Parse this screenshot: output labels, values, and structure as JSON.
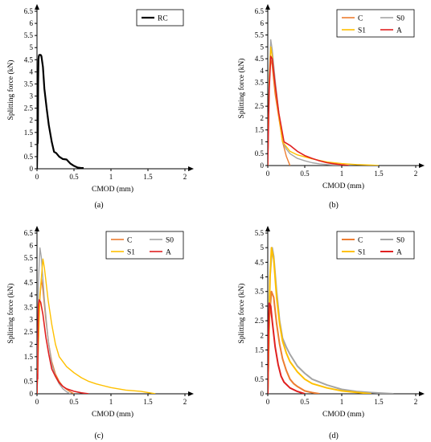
{
  "colors": {
    "C": "#ed7d31",
    "S0": "#a5a5a5",
    "S1": "#ffc000",
    "A": "#e02020",
    "RC": "#000000",
    "axis": "#000000"
  },
  "chart_data": [
    {
      "panel": "(a)",
      "type": "line",
      "xlabel": "CMOD (mm)",
      "ylabel": "Splitting force (kN)",
      "xlim": [
        0,
        2
      ],
      "ylim": [
        0,
        6.5
      ],
      "x_ticks": [
        "0",
        "0.5",
        "1",
        "1.5",
        "2"
      ],
      "y_ticks": [
        "0",
        "0.5",
        "1",
        "1.5",
        "2",
        "2.5",
        "3",
        "3.5",
        "4",
        "4.5",
        "5",
        "5.5",
        "6",
        "6.5"
      ],
      "legend_position": "top-right",
      "legend_columns": 1,
      "series": [
        {
          "name": "RC",
          "color_key": "RC",
          "width": 2.2,
          "x": [
            0,
            0.005,
            0.01,
            0.012,
            0.015,
            0.02,
            0.025,
            0.03,
            0.05,
            0.06,
            0.08,
            0.1,
            0.13,
            0.16,
            0.2,
            0.23,
            0.26,
            0.3,
            0.35,
            0.4,
            0.45,
            0.5,
            0.55,
            0.6,
            0.63
          ],
          "y": [
            0,
            1.1,
            1.05,
            1.2,
            3.5,
            4.5,
            4.65,
            4.7,
            4.7,
            4.65,
            4.2,
            3.3,
            2.5,
            1.8,
            1.1,
            0.7,
            0.65,
            0.5,
            0.4,
            0.38,
            0.22,
            0.12,
            0.05,
            0.03,
            0.03
          ]
        }
      ]
    },
    {
      "panel": "(b)",
      "type": "line",
      "xlabel": "CMOD (mm)",
      "ylabel": "Splitting force (kN)",
      "xlim": [
        0,
        2
      ],
      "ylim": [
        0,
        6.5
      ],
      "x_ticks": [
        "0",
        "0.5",
        "1",
        "1.5",
        "2"
      ],
      "y_ticks": [
        "0",
        "0.5",
        "1",
        "1.5",
        "2",
        "2.5",
        "3",
        "3.5",
        "4",
        "4.5",
        "5",
        "5.5",
        "6",
        "6.5"
      ],
      "legend_position": "top-right",
      "legend_columns": 2,
      "series": [
        {
          "name": "C",
          "color_key": "C",
          "width": 1.4,
          "x": [
            0,
            0.02,
            0.04,
            0.06,
            0.1,
            0.15,
            0.2,
            0.25,
            0.3
          ],
          "y": [
            0,
            3.5,
            4.5,
            4.2,
            3.0,
            2.0,
            1.0,
            0.4,
            0
          ]
        },
        {
          "name": "S0",
          "color_key": "S0",
          "width": 1.4,
          "x": [
            0,
            0.02,
            0.04,
            0.06,
            0.1,
            0.15,
            0.2,
            0.25,
            0.3,
            0.4,
            0.5,
            0.6,
            0.7,
            0.8,
            0.9,
            1.0
          ],
          "y": [
            0,
            3.8,
            5.3,
            4.9,
            3.6,
            2.2,
            1.0,
            0.7,
            0.5,
            0.3,
            0.2,
            0.12,
            0.07,
            0.04,
            0.02,
            0
          ]
        },
        {
          "name": "S1",
          "color_key": "S1",
          "width": 1.4,
          "x": [
            0,
            0.02,
            0.04,
            0.06,
            0.1,
            0.15,
            0.2,
            0.25,
            0.3,
            0.4,
            0.6,
            0.8,
            1.0,
            1.2,
            1.4,
            1.5
          ],
          "y": [
            0,
            3.5,
            5.0,
            4.6,
            3.3,
            2.1,
            1.0,
            0.8,
            0.6,
            0.45,
            0.28,
            0.15,
            0.08,
            0.04,
            0.02,
            0
          ]
        },
        {
          "name": "A",
          "color_key": "A",
          "width": 1.6,
          "x": [
            0,
            0.02,
            0.04,
            0.06,
            0.1,
            0.15,
            0.22,
            0.3,
            0.4,
            0.5,
            0.6,
            0.7,
            0.8,
            0.9,
            1.0,
            1.1
          ],
          "y": [
            0,
            3.2,
            4.6,
            4.5,
            3.4,
            2.2,
            1.0,
            0.85,
            0.6,
            0.42,
            0.3,
            0.2,
            0.12,
            0.07,
            0.03,
            0
          ]
        }
      ]
    },
    {
      "panel": "(c)",
      "type": "line",
      "xlabel": "CMOD (mm)",
      "ylabel": "Splitting force (kN)",
      "xlim": [
        0,
        2
      ],
      "ylim": [
        0,
        6.5
      ],
      "x_ticks": [
        "0",
        "0.5",
        "1",
        "1.5",
        "2"
      ],
      "y_ticks": [
        "0",
        "0.5",
        "1",
        "1.5",
        "2",
        "2.5",
        "3",
        "3.5",
        "4",
        "4.5",
        "5",
        "5.5",
        "6",
        "6.5"
      ],
      "legend_position": "top-right",
      "legend_columns": 2,
      "series": [
        {
          "name": "C",
          "color_key": "C",
          "width": 1.4,
          "x": [
            0,
            0.03,
            0.06,
            0.08,
            0.12,
            0.16,
            0.2,
            0.25,
            0.3,
            0.35,
            0.4,
            0.45,
            0.5
          ],
          "y": [
            0,
            3.5,
            4.65,
            4.2,
            3.0,
            2.0,
            1.3,
            0.8,
            0.5,
            0.3,
            0.18,
            0.08,
            0
          ]
        },
        {
          "name": "S0",
          "color_key": "S0",
          "width": 1.4,
          "x": [
            0,
            0.02,
            0.04,
            0.06,
            0.1,
            0.15,
            0.2,
            0.25,
            0.3,
            0.35,
            0.4,
            0.45
          ],
          "y": [
            0,
            4.5,
            5.9,
            5.5,
            3.8,
            2.2,
            1.2,
            0.7,
            0.4,
            0.2,
            0.08,
            0
          ]
        },
        {
          "name": "S1",
          "color_key": "S1",
          "width": 1.4,
          "x": [
            0,
            0.04,
            0.08,
            0.1,
            0.15,
            0.2,
            0.25,
            0.3,
            0.4,
            0.5,
            0.6,
            0.7,
            0.8,
            1.0,
            1.2,
            1.4,
            1.6
          ],
          "y": [
            0,
            4.0,
            5.45,
            5.1,
            3.8,
            2.8,
            2.0,
            1.5,
            1.1,
            0.85,
            0.65,
            0.5,
            0.4,
            0.25,
            0.15,
            0.1,
            0
          ]
        },
        {
          "name": "A",
          "color_key": "A",
          "width": 1.6,
          "x": [
            0,
            0.005,
            0.008,
            0.01,
            0.012,
            0.015,
            0.02,
            0.03,
            0.05,
            0.08,
            0.12,
            0.16,
            0.2,
            0.25,
            0.3,
            0.35,
            0.4,
            0.5,
            0.6,
            0.7
          ],
          "y": [
            0,
            0.7,
            0.8,
            0.6,
            1.4,
            2.8,
            3.6,
            3.8,
            3.7,
            3.2,
            2.3,
            1.6,
            1.0,
            0.7,
            0.45,
            0.3,
            0.2,
            0.1,
            0.04,
            0
          ]
        }
      ]
    },
    {
      "panel": "(d)",
      "type": "line",
      "xlabel": "CMOD (mm)",
      "ylabel": "Splitting force (kN)",
      "xlim": [
        0,
        2
      ],
      "ylim": [
        0,
        5.5
      ],
      "x_ticks": [
        "0",
        "0.5",
        "1",
        "1.5",
        "2"
      ],
      "y_ticks": [
        "0",
        "0.5",
        "1",
        "1.5",
        "2",
        "2.5",
        "3",
        "3.5",
        "4",
        "4.5",
        "5",
        "5.5"
      ],
      "legend_position": "top-right",
      "legend_columns": 2,
      "series": [
        {
          "name": "C",
          "color_key": "C",
          "width": 2.0,
          "x": [
            0,
            0.02,
            0.05,
            0.08,
            0.12,
            0.16,
            0.2,
            0.25,
            0.3,
            0.35,
            0.4,
            0.5,
            0.6,
            0.7
          ],
          "y": [
            0,
            2.5,
            3.5,
            3.3,
            2.4,
            1.7,
            1.2,
            0.8,
            0.5,
            0.35,
            0.25,
            0.1,
            0.04,
            0
          ]
        },
        {
          "name": "S0",
          "color_key": "S0",
          "width": 2.0,
          "x": [
            0,
            0.03,
            0.06,
            0.08,
            0.12,
            0.16,
            0.2,
            0.25,
            0.3,
            0.4,
            0.5,
            0.6,
            0.8,
            1.0,
            1.2,
            1.4,
            1.7
          ],
          "y": [
            0,
            4.0,
            5.0,
            4.7,
            3.5,
            2.5,
            1.9,
            1.6,
            1.35,
            0.95,
            0.7,
            0.5,
            0.3,
            0.15,
            0.08,
            0.04,
            0
          ]
        },
        {
          "name": "S1",
          "color_key": "S1",
          "width": 2.0,
          "x": [
            0,
            0.03,
            0.05,
            0.08,
            0.12,
            0.16,
            0.2,
            0.25,
            0.3,
            0.4,
            0.5,
            0.6,
            0.8,
            1.0,
            1.2,
            1.4
          ],
          "y": [
            0,
            4.0,
            5.0,
            4.6,
            3.3,
            2.4,
            1.8,
            1.4,
            1.1,
            0.75,
            0.5,
            0.35,
            0.2,
            0.1,
            0.05,
            0
          ]
        },
        {
          "name": "A",
          "color_key": "A",
          "width": 2.0,
          "x": [
            0,
            0.01,
            0.02,
            0.04,
            0.06,
            0.1,
            0.14,
            0.18,
            0.22,
            0.3,
            0.4,
            0.5
          ],
          "y": [
            0,
            2.0,
            3.1,
            3.0,
            2.5,
            1.6,
            1.0,
            0.6,
            0.4,
            0.2,
            0.08,
            0
          ]
        }
      ]
    }
  ]
}
